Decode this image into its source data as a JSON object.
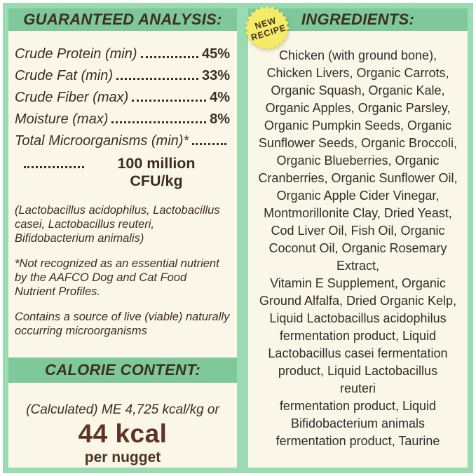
{
  "colors": {
    "page_background": "#ffffff",
    "panel_background": "#faf7e8",
    "panel_border_green": "#9adbb2",
    "header_band_green": "#7ec89b",
    "text_dark_brown": "#3a2e24",
    "calorie_value_brown": "#5d3423",
    "badge_yellow": "#f5eb68"
  },
  "left_panel": {
    "header": "GUARANTEED ANALYSIS:",
    "analysis_rows": [
      {
        "label": "Crude Protein (min)",
        "value": "45%"
      },
      {
        "label": "Crude Fat (min)",
        "value": "33%"
      },
      {
        "label": "Crude Fiber (max)",
        "value": "4%"
      },
      {
        "label": "Moisture (max)",
        "value": "8%"
      },
      {
        "label": "Total Microorganisms (min)*",
        "value": ""
      }
    ],
    "cfu_value": "100 million CFU/kg",
    "notes": [
      "(Lactobacillus acidophilus, Lactobacillus casei, Lactobacillus reuteri, Bifidobacterium animalis)",
      "*Not recognized as an essential nutrient by the AAFCO Dog and Cat Food Nutrient Profiles.",
      "Contains a source of live (viable) naturally occurring microorganisms"
    ],
    "calorie": {
      "header": "CALORIE CONTENT:",
      "formula": "(Calculated) ME 4,725 kcal/kg or",
      "value": "44 kcal",
      "unit": "per nugget"
    }
  },
  "right_panel": {
    "badge": {
      "line1": "NEW",
      "line2": "RECIPE"
    },
    "header": "INGREDIENTS:",
    "ingredients_lines": [
      "Chicken (with ground bone),",
      "Chicken Livers, Organic Carrots,",
      "Organic Squash, Organic Kale,",
      "Organic Apples, Organic Parsley,",
      "Organic Pumpkin Seeds, Organic",
      "Sunflower Seeds, Organic Broccoli,",
      "Organic Blueberries, Organic",
      "Cranberries, Organic Sunflower Oil,",
      "Organic Apple Cider Vinegar,",
      "Montmorillonite Clay, Dried Yeast,",
      "Cod Liver Oil, Fish Oil, Organic",
      "Coconut Oil, Organic Rosemary",
      "Extract,",
      "Vitamin E Supplement, Organic",
      "Ground Alfalfa, Dried Organic Kelp,",
      "Liquid Lactobacillus acidophilus",
      "fermentation product, Liquid",
      "Lactobacillus casei fermentation",
      "product, Liquid Lactobacillus",
      "reuteri",
      "fermentation product, Liquid",
      "Bifidobacterium animals",
      "fermentation product, Taurine"
    ]
  }
}
